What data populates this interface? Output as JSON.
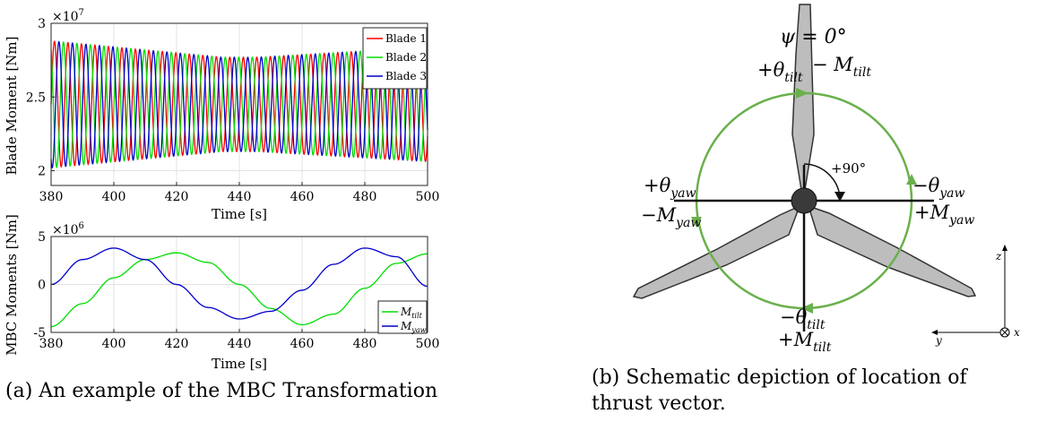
{
  "chart_data": [
    {
      "type": "line",
      "ylabel": "Blade Moment [Nm]",
      "xlabel": "Time [s]",
      "exponent_label": "×10",
      "exponent_power": "7",
      "xlim": [
        380,
        500
      ],
      "ylim": [
        1.9,
        3.0
      ],
      "xticks": [
        "380",
        "400",
        "420",
        "440",
        "460",
        "480",
        "500"
      ],
      "yticks": [
        "2",
        "2.5",
        "3"
      ],
      "grid": true,
      "legend_position": "top-right",
      "series": [
        {
          "name": "Blade 1",
          "color": "#ff0000",
          "mean": 2.45,
          "amplitude_start": 0.43,
          "amplitude_end": 0.32,
          "period": 4.3,
          "phase_deg": 0
        },
        {
          "name": "Blade 2",
          "color": "#00dd00",
          "mean": 2.45,
          "amplitude_start": 0.43,
          "amplitude_end": 0.32,
          "period": 4.3,
          "phase_deg": 120
        },
        {
          "name": "Blade 3",
          "color": "#0000cc",
          "mean": 2.45,
          "amplitude_start": 0.43,
          "amplitude_end": 0.32,
          "period": 4.3,
          "phase_deg": 240
        }
      ]
    },
    {
      "type": "line",
      "ylabel": "MBC Moments [Nm]",
      "xlabel": "Time [s]",
      "exponent_label": "×10",
      "exponent_power": "6",
      "xlim": [
        380,
        500
      ],
      "ylim": [
        -5,
        5
      ],
      "xticks": [
        "380",
        "400",
        "420",
        "440",
        "460",
        "480",
        "500"
      ],
      "yticks": [
        "-5",
        "0",
        "5"
      ],
      "grid": true,
      "legend_position": "bottom-right",
      "series": [
        {
          "name": "M",
          "subscript": "tilt",
          "color": "#00dd00",
          "points": [
            [
              380,
              -4.4
            ],
            [
              390,
              -2.0
            ],
            [
              400,
              0.7
            ],
            [
              410,
              2.6
            ],
            [
              420,
              3.3
            ],
            [
              430,
              2.3
            ],
            [
              440,
              0.0
            ],
            [
              450,
              -2.5
            ],
            [
              460,
              -4.2
            ],
            [
              470,
              -3.1
            ],
            [
              480,
              -0.4
            ],
            [
              490,
              2.2
            ],
            [
              500,
              3.2
            ]
          ]
        },
        {
          "name": "M",
          "subscript": "yaw",
          "color": "#0000cc",
          "points": [
            [
              380,
              0.0
            ],
            [
              390,
              2.6
            ],
            [
              400,
              3.8
            ],
            [
              410,
              2.6
            ],
            [
              420,
              0.0
            ],
            [
              430,
              -2.4
            ],
            [
              440,
              -3.6
            ],
            [
              450,
              -2.8
            ],
            [
              460,
              -0.6
            ],
            [
              470,
              2.1
            ],
            [
              480,
              3.8
            ],
            [
              490,
              2.9
            ],
            [
              500,
              -0.2
            ]
          ]
        }
      ]
    }
  ],
  "schematic": {
    "psi_label": "ψ = 0°",
    "top_theta": "+θ",
    "top_theta_sub": "tilt",
    "top_moment": "− M",
    "top_moment_sub": "tilt",
    "angle_label": "+90°",
    "left_theta": "+θ",
    "left_theta_sub": "yaw",
    "left_moment": "−M",
    "left_moment_sub": "yaw",
    "right_theta": "−θ",
    "right_theta_sub": "yaw",
    "right_moment": "+M",
    "right_moment_sub": "yaw",
    "bottom_theta": "−θ",
    "bottom_theta_sub": "tilt",
    "bottom_moment": "+M",
    "bottom_moment_sub": "tilt",
    "axis_z": "z",
    "axis_y": "y",
    "axis_x": "x",
    "circle_color": "#6ab04c"
  },
  "captions": {
    "a": "(a) An example of the MBC Transformation",
    "b_line1": "(b) Schematic depiction of location of",
    "b_line2": "thrust vector."
  }
}
